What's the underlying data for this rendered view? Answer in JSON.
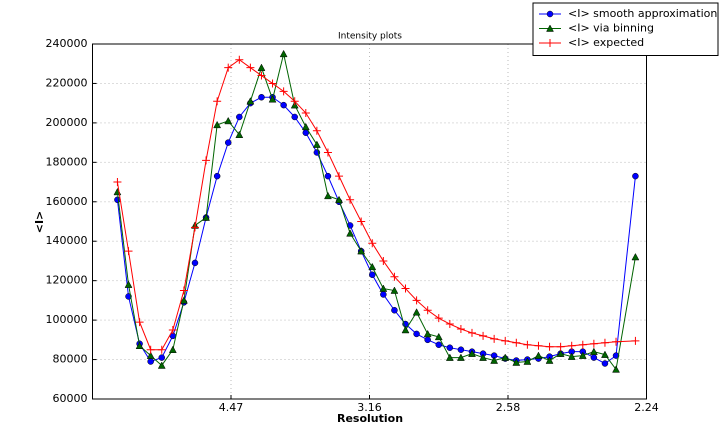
{
  "chart_data": {
    "type": "line",
    "title": "Intensity plots",
    "x_label": "Resolution",
    "y_label": "<I>",
    "x": [
      0.009,
      0.013,
      0.017,
      0.021,
      0.025,
      0.029,
      0.033,
      0.037,
      0.041,
      0.045,
      0.049,
      0.053,
      0.057,
      0.061,
      0.065,
      0.069,
      0.073,
      0.077,
      0.081,
      0.085,
      0.089,
      0.093,
      0.097,
      0.101,
      0.105,
      0.109,
      0.113,
      0.117,
      0.121,
      0.125,
      0.129,
      0.133,
      0.137,
      0.141,
      0.145,
      0.149,
      0.153,
      0.157,
      0.161,
      0.165,
      0.169,
      0.173,
      0.177,
      0.181,
      0.185,
      0.189,
      0.196
    ],
    "series": [
      {
        "name": "<I> smooth approximation",
        "color": "#0000ff",
        "marker": "o",
        "values": [
          161000,
          112000,
          88000,
          79000,
          81000,
          92000,
          109000,
          129000,
          152000,
          173000,
          190000,
          203000,
          210000,
          213000,
          213000,
          209000,
          203000,
          195000,
          185000,
          173000,
          160000,
          148000,
          135000,
          123000,
          113000,
          105000,
          98000,
          93000,
          90000,
          87500,
          86000,
          85000,
          84000,
          83000,
          82000,
          80500,
          79500,
          80000,
          80500,
          81500,
          83000,
          84000,
          84000,
          81000,
          78000,
          82000,
          173000
        ]
      },
      {
        "name": "<I> via binning",
        "color": "#006400",
        "marker": "^",
        "values": [
          165000,
          118000,
          87000,
          82000,
          77000,
          85000,
          110000,
          148000,
          152000,
          199000,
          201000,
          194000,
          211000,
          228000,
          212000,
          235000,
          209000,
          198000,
          189000,
          163000,
          161000,
          144000,
          135000,
          127000,
          116000,
          115000,
          95000,
          104000,
          93000,
          91500,
          81000,
          81000,
          83000,
          81000,
          79500,
          81000,
          78500,
          79000,
          82000,
          79500,
          83000,
          81500,
          82000,
          84000,
          82500,
          75000,
          132000
        ]
      },
      {
        "name": "<I> expected",
        "color": "#ff0000",
        "marker": "+",
        "values": [
          170000,
          135000,
          99000,
          85000,
          85000,
          95000,
          115000,
          147000,
          181000,
          211000,
          228000,
          232000,
          228000,
          224000,
          220000,
          216000,
          211000,
          205000,
          196000,
          185000,
          173000,
          161000,
          150000,
          139000,
          130000,
          122000,
          116000,
          110000,
          105000,
          101000,
          98000,
          95500,
          93500,
          92000,
          90500,
          89500,
          88500,
          87500,
          87000,
          86500,
          86500,
          87000,
          87500,
          88000,
          88500,
          89000,
          89500
        ]
      }
    ],
    "xlim": [
      0,
      0.2
    ],
    "xticks": [
      {
        "value": 0.05,
        "label": "4.47"
      },
      {
        "value": 0.1,
        "label": "3.16"
      },
      {
        "value": 0.15,
        "label": "2.58"
      },
      {
        "value": 0.2,
        "label": "2.24"
      }
    ],
    "ylim": [
      60000,
      240000
    ],
    "yticks": [
      60000,
      80000,
      100000,
      120000,
      140000,
      160000,
      180000,
      200000,
      220000,
      240000
    ],
    "grid": true,
    "legend": "upper right"
  }
}
